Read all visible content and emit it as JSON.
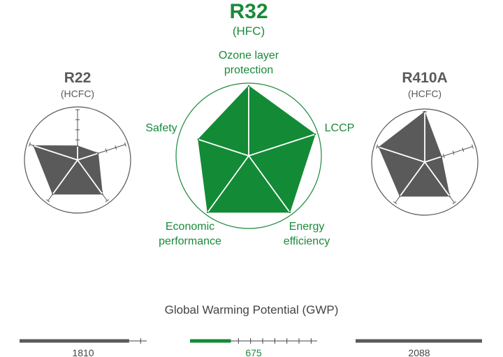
{
  "chart_data": [
    {
      "type": "radar",
      "title": "R22",
      "subtitle": "(HCFC)",
      "axes": [
        "Ozone layer protection",
        "LCCP",
        "Energy efficiency",
        "Economic performance",
        "Safety"
      ],
      "values": [
        0.28,
        0.43,
        0.84,
        0.84,
        0.92
      ],
      "max": 1,
      "color": "#5a5a5a"
    },
    {
      "type": "radar",
      "title": "R32",
      "subtitle": "(HFC)",
      "axes": [
        "Ozone layer protection",
        "LCCP",
        "Energy efficiency",
        "Economic performance",
        "Safety"
      ],
      "axis_labels": [
        "Ozone layer\nprotection",
        "LCCP",
        "Energy\nefficiency",
        "Economic\nperformance",
        "Safety"
      ],
      "values": [
        1.0,
        1.0,
        1.0,
        1.0,
        0.76
      ],
      "max": 1,
      "color": "#138a36"
    },
    {
      "type": "radar",
      "title": "R410A",
      "subtitle": "(HCFC)",
      "axes": [
        "Ozone layer protection",
        "LCCP",
        "Energy efficiency",
        "Economic performance",
        "Safety"
      ],
      "values": [
        1.0,
        0.35,
        0.84,
        0.84,
        0.96
      ],
      "max": 1,
      "color": "#5a5a5a"
    },
    {
      "type": "bar",
      "title": "Global Warming Potential (GWP)",
      "categories": [
        "R22",
        "R32",
        "R410A"
      ],
      "values": [
        1810,
        675,
        2088
      ],
      "value_labels": [
        "1810",
        "675",
        "2088"
      ],
      "colors": [
        "#5a5a5a",
        "#138a36",
        "#5a5a5a"
      ],
      "value_color": "#444444",
      "value_color_highlight": "#1a8a3a",
      "ylim": [
        0,
        2100
      ],
      "tick_step": 200
    }
  ]
}
